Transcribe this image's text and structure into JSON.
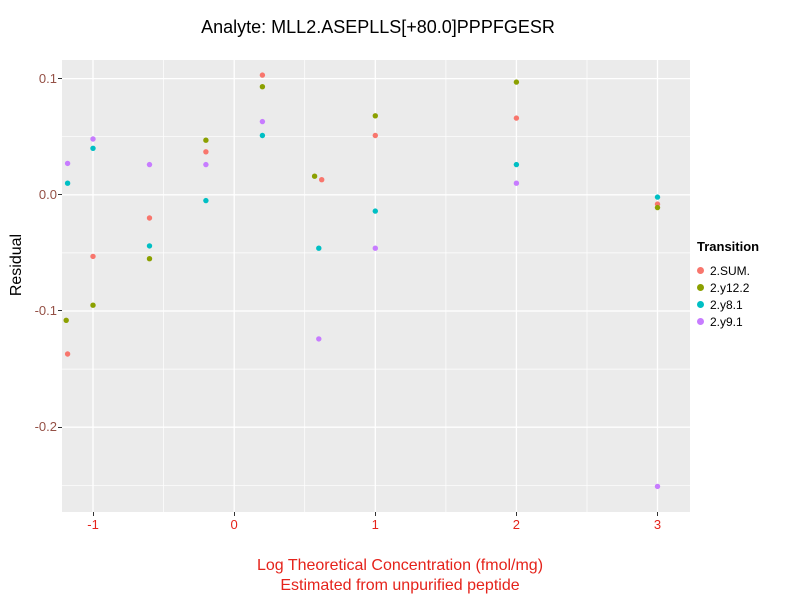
{
  "chart_data": {
    "type": "scatter",
    "title": "Analyte: MLL2.ASEPLLS[+80.0]PPPFGESR",
    "ylabel": "Residual",
    "xlabel_line1": "Log Theoretical Concentration (fmol/mg)",
    "xlabel_line2": "Estimated from unpurified peptide",
    "legend_title": "Transition",
    "legend_position": "right",
    "grid": true,
    "xlim": [
      -1.22,
      3.23
    ],
    "ylim": [
      -0.273,
      0.116
    ],
    "x_ticks": [
      -1,
      0,
      1,
      2,
      3
    ],
    "x_tick_labels": [
      "-1",
      "0",
      "1",
      "2",
      "3"
    ],
    "x_minor_ticks": [
      -0.5,
      0.5,
      1.5,
      2.5
    ],
    "y_ticks": [
      0.1,
      0.0,
      -0.1,
      -0.2
    ],
    "y_tick_labels": [
      "0.1",
      "0.0",
      "-0.1",
      "-0.2"
    ],
    "y_minor_ticks": [
      0.05,
      -0.05,
      -0.15,
      -0.25
    ],
    "colors": {
      "panel_background": "#EBEBEB",
      "gridline": "#FFFFFF",
      "x_tick_text": "#E5231B",
      "y_tick_text": "#945045",
      "x_axis_title": "#E5231B",
      "tick_mark": "#333333"
    },
    "series": [
      {
        "name": "2.SUM.",
        "color": "#F8766D",
        "points": [
          [
            -1.18,
            -0.137
          ],
          [
            -1.0,
            -0.053
          ],
          [
            -0.6,
            -0.02
          ],
          [
            -0.2,
            0.037
          ],
          [
            0.2,
            0.103
          ],
          [
            0.62,
            0.013
          ],
          [
            1.0,
            0.051
          ],
          [
            2.0,
            0.066
          ],
          [
            3.0,
            -0.008
          ]
        ]
      },
      {
        "name": "2.y12.2",
        "color": "#8BA000",
        "points": [
          [
            -1.19,
            -0.108
          ],
          [
            -1.0,
            -0.095
          ],
          [
            -0.6,
            -0.055
          ],
          [
            -0.2,
            0.047
          ],
          [
            0.2,
            0.093
          ],
          [
            0.57,
            0.016
          ],
          [
            1.0,
            0.068
          ],
          [
            2.0,
            0.097
          ],
          [
            3.0,
            -0.011
          ]
        ]
      },
      {
        "name": "2.y8.1",
        "color": "#00BFC4",
        "points": [
          [
            -1.18,
            0.01
          ],
          [
            -1.0,
            0.04
          ],
          [
            -0.6,
            -0.044
          ],
          [
            -0.2,
            -0.005
          ],
          [
            0.2,
            0.051
          ],
          [
            0.6,
            -0.046
          ],
          [
            1.0,
            -0.014
          ],
          [
            2.0,
            0.026
          ],
          [
            3.0,
            -0.002
          ]
        ]
      },
      {
        "name": "2.y9.1",
        "color": "#C77CFF",
        "points": [
          [
            -1.18,
            0.027
          ],
          [
            -1.0,
            0.048
          ],
          [
            -0.6,
            0.026
          ],
          [
            -0.2,
            0.026
          ],
          [
            0.2,
            0.063
          ],
          [
            0.6,
            -0.124
          ],
          [
            1.0,
            -0.046
          ],
          [
            2.0,
            0.01
          ],
          [
            3.0,
            -0.251
          ]
        ]
      }
    ]
  }
}
